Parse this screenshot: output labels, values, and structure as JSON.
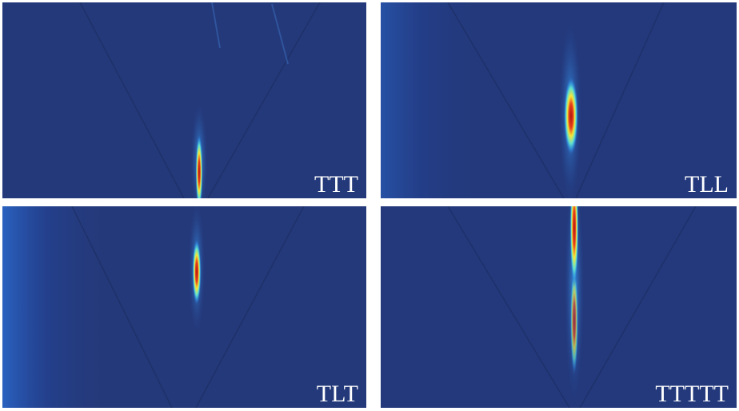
{
  "panels": [
    {
      "label": "TTT"
    },
    {
      "label": "TLL"
    },
    {
      "label": "TLT"
    },
    {
      "label": "TTTTT"
    }
  ]
}
